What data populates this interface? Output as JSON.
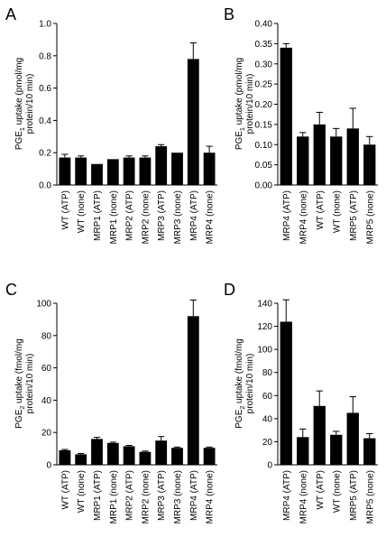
{
  "chart_data": [
    {
      "panel": "A",
      "type": "bar",
      "categories": [
        "WT (ATP)",
        "WT (none)",
        "MRP1 (ATP)",
        "MRP1 (none)",
        "MRP2 (ATP)",
        "MRP2 (none)",
        "MRP3 (ATP)",
        "MRP3 (none)",
        "MRP4 (ATP)",
        "MRP4 (none)"
      ],
      "values": [
        0.17,
        0.17,
        0.13,
        0.16,
        0.17,
        0.17,
        0.24,
        0.2,
        0.78,
        0.2
      ],
      "errors": [
        0.02,
        0.01,
        0.0,
        0.0,
        0.01,
        0.01,
        0.01,
        0.0,
        0.1,
        0.04
      ],
      "ylabel_main": "PGE",
      "ylabel_sub": "1",
      "ylabel_rest": " uptake (pmol/mg",
      "ylabel_line2": "protein/10 min)",
      "ylim": [
        0,
        1.0
      ],
      "yticks": [
        "0.0",
        "0.2",
        "0.4",
        "0.6",
        "0.8",
        "1.0"
      ],
      "ytick_values": [
        0,
        0.2,
        0.4,
        0.6,
        0.8,
        1.0
      ]
    },
    {
      "panel": "B",
      "type": "bar",
      "categories": [
        "MRP4 (ATP)",
        "MRP4 (none)",
        "WT (ATP)",
        "WT (none)",
        "MRP5 (ATP)",
        "MRP5 (none)"
      ],
      "values": [
        0.34,
        0.12,
        0.15,
        0.12,
        0.14,
        0.1
      ],
      "errors": [
        0.01,
        0.01,
        0.03,
        0.02,
        0.05,
        0.02
      ],
      "ylabel_main": "PGE",
      "ylabel_sub": "1",
      "ylabel_rest": " uptake (pmol/mg",
      "ylabel_line2": "protein/10 min)",
      "ylim": [
        0,
        0.4
      ],
      "yticks": [
        "0.00",
        "0.05",
        "0.10",
        "0.15",
        "0.20",
        "0.25",
        "0.30",
        "0.35",
        "0.40"
      ],
      "ytick_values": [
        0,
        0.05,
        0.1,
        0.15,
        0.2,
        0.25,
        0.3,
        0.35,
        0.4
      ]
    },
    {
      "panel": "C",
      "type": "bar",
      "categories": [
        "WT (ATP)",
        "WT (none)",
        "MRP1 (ATP)",
        "MRP1 (none)",
        "MRP2 (ATP)",
        "MRP2 (none)",
        "MRP3 (ATP)",
        "MRP3 (none)",
        "MRP4 (ATP)",
        "MRP4 (none)"
      ],
      "values": [
        9,
        6.5,
        16,
        13.5,
        11.5,
        8,
        15,
        10.5,
        92,
        10.5
      ],
      "errors": [
        0.5,
        0.5,
        1,
        0.5,
        0.5,
        0.5,
        2.5,
        0.5,
        10,
        0.5
      ],
      "ylabel_main": "PGE",
      "ylabel_sub": "2",
      "ylabel_rest": " uptake (fmol/mg",
      "ylabel_line2": "protein/10 min)",
      "ylim": [
        0,
        100
      ],
      "yticks": [
        "0",
        "20",
        "40",
        "60",
        "80",
        "100"
      ],
      "ytick_values": [
        0,
        20,
        40,
        60,
        80,
        100
      ]
    },
    {
      "panel": "D",
      "type": "bar",
      "categories": [
        "MRP4 (ATP)",
        "MRP4 (none)",
        "WT (ATP)",
        "WT (none)",
        "MRP5 (ATP)",
        "MRP5 (none)"
      ],
      "values": [
        124,
        24,
        51,
        26,
        45,
        23
      ],
      "errors": [
        19,
        7,
        13,
        3,
        14,
        4
      ],
      "ylabel_main": "PGE",
      "ylabel_sub": "2",
      "ylabel_rest": " uptake (fmol/mg",
      "ylabel_line2": "protein/10 min)",
      "ylim": [
        0,
        140
      ],
      "yticks": [
        "0",
        "20",
        "40",
        "60",
        "80",
        "100",
        "120",
        "140"
      ],
      "ytick_values": [
        0,
        20,
        40,
        60,
        80,
        100,
        120,
        140
      ]
    }
  ]
}
